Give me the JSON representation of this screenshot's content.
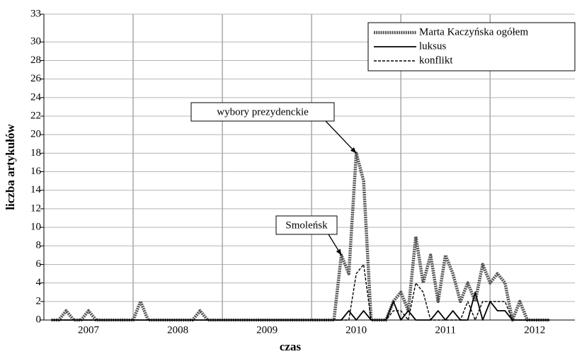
{
  "chart_data": {
    "type": "line",
    "xlabel": "czas",
    "ylabel": "liczba artykułów",
    "x": [
      2007.083,
      2007.167,
      2007.25,
      2007.333,
      2007.417,
      2007.5,
      2007.583,
      2007.667,
      2007.75,
      2007.833,
      2007.917,
      2008,
      2008.083,
      2008.167,
      2008.25,
      2008.333,
      2008.417,
      2008.5,
      2008.583,
      2008.667,
      2008.75,
      2008.833,
      2008.917,
      2009,
      2009.083,
      2009.167,
      2009.25,
      2009.333,
      2009.417,
      2009.5,
      2009.583,
      2009.667,
      2009.75,
      2009.833,
      2009.917,
      2010,
      2010.083,
      2010.167,
      2010.25,
      2010.333,
      2010.417,
      2010.5,
      2010.583,
      2010.667,
      2010.75,
      2010.833,
      2010.917,
      2011,
      2011.083,
      2011.167,
      2011.25,
      2011.333,
      2011.417,
      2011.5,
      2011.583,
      2011.667,
      2011.75,
      2011.833,
      2011.917,
      2012,
      2012.083,
      2012.167,
      2012.25,
      2012.333,
      2012.417,
      2012.5,
      2012.583,
      2012.667
    ],
    "series": [
      {
        "name": "Marta Kaczyńska ogółem",
        "color": "#555555",
        "dash": "dotted",
        "values": [
          0,
          0,
          1,
          0,
          0,
          1,
          0,
          0,
          0,
          0,
          0,
          0,
          2,
          0,
          0,
          0,
          0,
          0,
          0,
          0,
          1,
          0,
          0,
          0,
          0,
          0,
          0,
          0,
          0,
          0,
          0,
          0,
          0,
          0,
          0,
          0,
          0,
          0,
          0,
          7,
          5,
          18,
          15,
          0,
          0,
          0,
          2,
          3,
          1,
          9,
          4,
          7,
          2,
          7,
          5,
          2,
          4,
          2,
          6,
          4,
          5,
          4,
          0,
          2,
          0,
          0,
          0,
          0
        ]
      },
      {
        "name": "luksus",
        "color": "#000000",
        "dash": "solid",
        "values": [
          0,
          0,
          0,
          0,
          0,
          0,
          0,
          0,
          0,
          0,
          0,
          0,
          0,
          0,
          0,
          0,
          0,
          0,
          0,
          0,
          0,
          0,
          0,
          0,
          0,
          0,
          0,
          0,
          0,
          0,
          0,
          0,
          0,
          0,
          0,
          0,
          0,
          0,
          0,
          0,
          1,
          0,
          1,
          0,
          0,
          0,
          2,
          0,
          1,
          0,
          0,
          0,
          1,
          0,
          1,
          0,
          0,
          3,
          0,
          2,
          1,
          1,
          0,
          0,
          0,
          0,
          0,
          0
        ]
      },
      {
        "name": "konflikt",
        "color": "#000000",
        "dash": "dashed",
        "values": [
          0,
          0,
          0,
          0,
          0,
          0,
          0,
          0,
          0,
          0,
          0,
          0,
          0,
          0,
          0,
          0,
          0,
          0,
          0,
          0,
          0,
          0,
          0,
          0,
          0,
          0,
          0,
          0,
          0,
          0,
          0,
          0,
          0,
          0,
          0,
          0,
          0,
          0,
          0,
          0,
          0,
          5,
          6,
          0,
          0,
          0,
          1,
          1,
          0,
          4,
          3,
          0,
          0,
          0,
          0,
          0,
          2,
          0,
          2,
          2,
          2,
          2,
          0,
          0,
          0,
          0,
          0,
          0
        ]
      }
    ],
    "xlim": [
      2007,
      2012.95
    ],
    "xticks": [
      {
        "value": 2007.5,
        "label": "2007"
      },
      {
        "value": 2008.5,
        "label": "2008"
      },
      {
        "value": 2009.5,
        "label": "2009"
      },
      {
        "value": 2010.5,
        "label": "2010"
      },
      {
        "value": 2011.5,
        "label": "2011"
      },
      {
        "value": 2012.5,
        "label": "2012"
      }
    ],
    "xgrid": [
      2008,
      2009,
      2010,
      2011,
      2012
    ],
    "ylim": [
      0,
      33
    ],
    "yticks": [
      0,
      2,
      4,
      6,
      8,
      10,
      12,
      14,
      16,
      18,
      20,
      22,
      24,
      26,
      28,
      30,
      33
    ],
    "grid": true,
    "legend": "top-right",
    "annotations": [
      {
        "text": "wybory prezydenckie",
        "x": 2010.5,
        "y": 18
      },
      {
        "text": "Smoleńsk",
        "x": 2010.333,
        "y": 7
      }
    ]
  }
}
